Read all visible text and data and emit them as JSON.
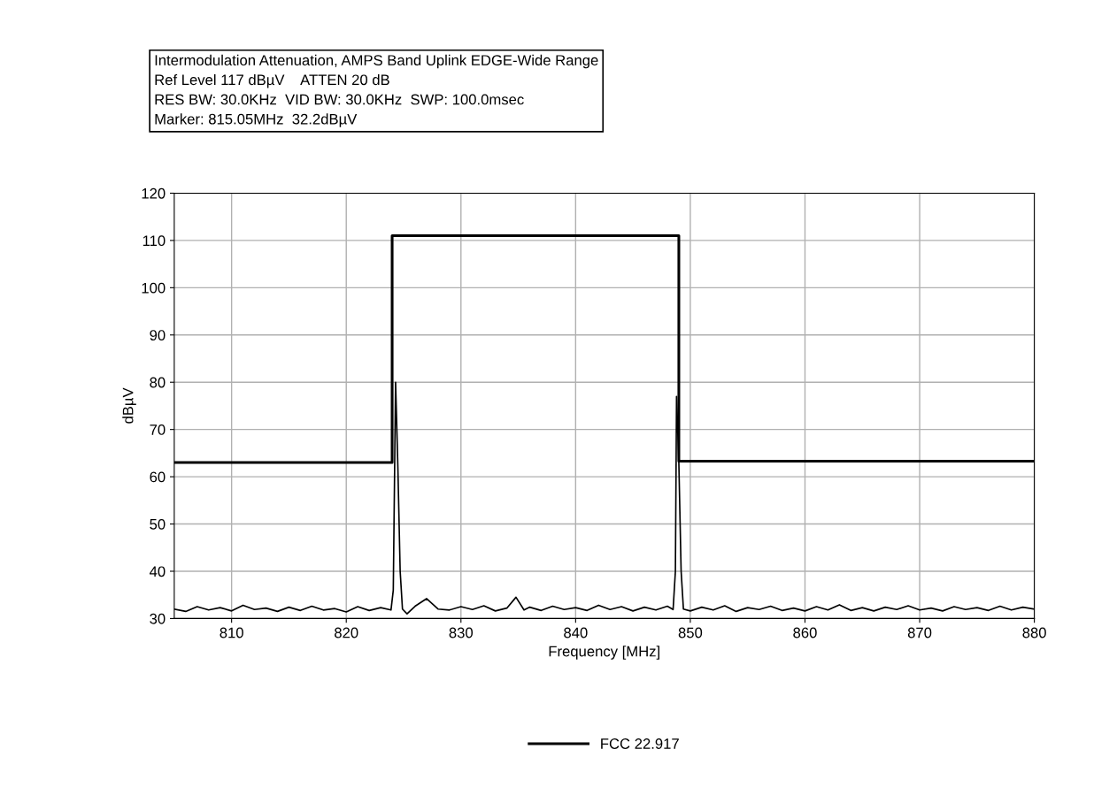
{
  "chart_data": {
    "type": "line",
    "title": "Intermodulation Attenuation, AMPS Band Uplink EDGE-Wide Range",
    "annotations": [
      "Ref Level 117 dBµV    ATTEN 20 dB",
      "RES BW: 30.0KHz  VID BW: 30.0KHz  SWP: 100.0msec",
      "Marker: 815.05MHz  32.2dBµV"
    ],
    "xlabel": "Frequency [MHz]",
    "ylabel": "dBµV",
    "xlim": [
      805,
      880
    ],
    "xticks": [
      810,
      820,
      830,
      840,
      850,
      860,
      870,
      880
    ],
    "ylim": [
      30,
      120
    ],
    "yticks": [
      30,
      40,
      50,
      60,
      70,
      80,
      90,
      100,
      110,
      120
    ],
    "grid": true,
    "legend": "bottom",
    "marker": "none",
    "line_style": "solid",
    "series": [
      {
        "name": "FCC 22.917",
        "color": "#000000",
        "x": [
          805,
          824,
          824,
          849,
          849,
          880
        ],
        "values": [
          63,
          63,
          111,
          111,
          63.3,
          63.3
        ]
      },
      {
        "color": "#000000",
        "x": [
          805,
          806,
          807,
          808,
          809,
          810,
          811,
          812,
          813,
          814,
          815,
          816,
          817,
          818,
          819,
          820,
          821,
          822,
          823,
          823.9,
          824.1,
          824.3,
          824.5,
          824.7,
          824.9,
          825.3,
          826,
          827,
          828,
          829,
          830,
          831,
          832,
          833,
          834,
          834.8,
          835.5,
          836,
          837,
          838,
          839,
          840,
          841,
          842,
          843,
          844,
          845,
          846,
          847,
          848,
          848.5,
          848.7,
          848.8,
          849,
          849.2,
          849.4,
          850,
          851,
          852,
          853,
          854,
          855,
          856,
          857,
          858,
          859,
          860,
          861,
          862,
          863,
          864,
          865,
          866,
          867,
          868,
          869,
          870,
          871,
          872,
          873,
          874,
          875,
          876,
          877,
          878,
          879,
          880
        ],
        "values": [
          32,
          31.5,
          32.5,
          31.8,
          32.3,
          31.6,
          32.8,
          31.9,
          32.2,
          31.5,
          32.4,
          31.7,
          32.6,
          31.8,
          32.1,
          31.4,
          32.5,
          31.7,
          32.3,
          31.8,
          36,
          80,
          62,
          40,
          32,
          31,
          32.6,
          34.2,
          32,
          31.8,
          32.5,
          31.9,
          32.7,
          31.6,
          32.2,
          34.5,
          31.8,
          32.4,
          31.7,
          32.6,
          31.9,
          32.3,
          31.7,
          32.8,
          31.9,
          32.5,
          31.6,
          32.4,
          31.8,
          32.6,
          31.9,
          40,
          77,
          63,
          40,
          32,
          31.6,
          32.4,
          31.8,
          32.7,
          31.5,
          32.3,
          31.9,
          32.6,
          31.7,
          32.2,
          31.6,
          32.5,
          31.8,
          32.9,
          31.7,
          32.3,
          31.6,
          32.4,
          31.9,
          32.7,
          31.8,
          32.2,
          31.6,
          32.5,
          31.9,
          32.3,
          31.7,
          32.6,
          31.8,
          32.4,
          32
        ]
      }
    ]
  }
}
